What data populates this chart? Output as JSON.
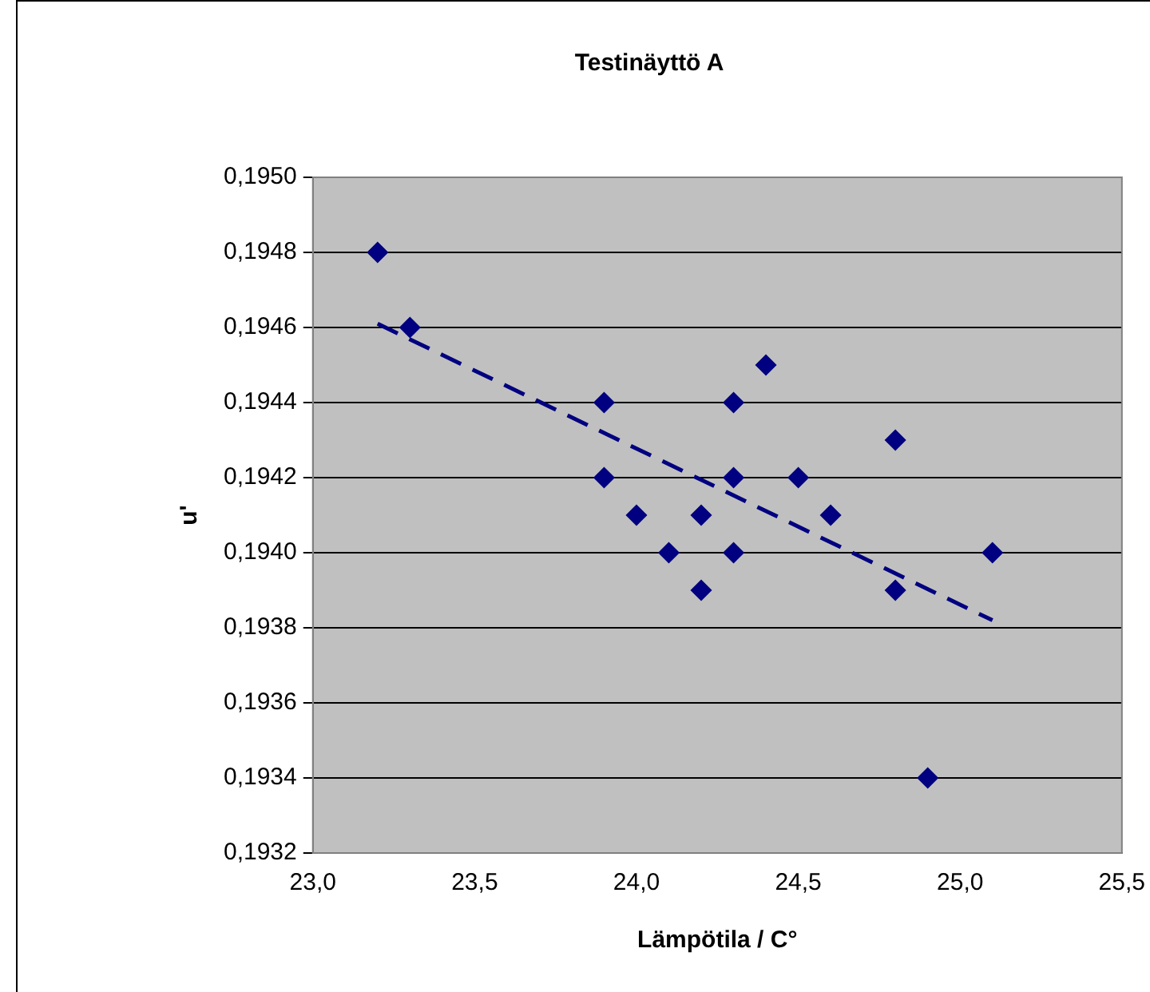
{
  "chart_data": {
    "type": "scatter",
    "title": "Testinäyttö A",
    "xlabel": "Lämpötila / C°",
    "ylabel": "u'",
    "xlim": [
      23.0,
      25.5
    ],
    "xticks": [
      {
        "value": 23.0,
        "label": "23,0"
      },
      {
        "value": 23.5,
        "label": "23,5"
      },
      {
        "value": 24.0,
        "label": "24,0"
      },
      {
        "value": 24.5,
        "label": "24,5"
      },
      {
        "value": 25.0,
        "label": "25,0"
      },
      {
        "value": 25.5,
        "label": "25,5"
      }
    ],
    "ylim": [
      0.1932,
      0.195
    ],
    "yticks": [
      {
        "value": 0.1932,
        "label": "0,1932"
      },
      {
        "value": 0.1934,
        "label": "0,1934"
      },
      {
        "value": 0.1936,
        "label": "0,1936"
      },
      {
        "value": 0.1938,
        "label": "0,1938"
      },
      {
        "value": 0.194,
        "label": "0,1940"
      },
      {
        "value": 0.1942,
        "label": "0,1942"
      },
      {
        "value": 0.1944,
        "label": "0,1944"
      },
      {
        "value": 0.1946,
        "label": "0,1946"
      },
      {
        "value": 0.1948,
        "label": "0,1948"
      },
      {
        "value": 0.195,
        "label": "0,1950"
      }
    ],
    "grid": "y",
    "legend": false,
    "series": [
      {
        "type": "scatter",
        "color": "#000080",
        "marker": "diamond",
        "x": [
          23.2,
          23.3,
          23.9,
          23.9,
          24.0,
          24.1,
          24.2,
          24.2,
          24.3,
          24.3,
          24.3,
          24.4,
          24.5,
          24.6,
          24.8,
          24.8,
          24.9,
          25.1
        ],
        "values": [
          0.1948,
          0.1946,
          0.1944,
          0.1942,
          0.1941,
          0.194,
          0.1939,
          0.1941,
          0.1944,
          0.1942,
          0.194,
          0.1945,
          0.1942,
          0.1941,
          0.1943,
          0.1939,
          0.1934,
          0.194
        ]
      },
      {
        "type": "line",
        "color": "#000080",
        "marker": "none",
        "line_style": "dashed",
        "x": [
          23.2,
          25.1
        ],
        "values": [
          0.19461,
          0.19382
        ]
      }
    ]
  }
}
